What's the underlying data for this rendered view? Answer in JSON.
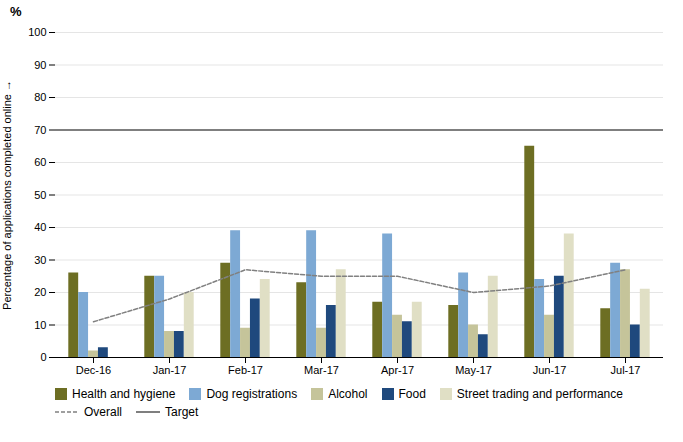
{
  "chart_data": {
    "type": "bar",
    "categories": [
      "Dec-16",
      "Jan-17",
      "Feb-17",
      "Mar-17",
      "Apr-17",
      "May-17",
      "Jun-17",
      "Jul-17"
    ],
    "series": [
      {
        "name": "Health and hygiene",
        "color": "#6d6e23",
        "values": [
          26,
          25,
          29,
          23,
          17,
          16,
          65,
          15
        ]
      },
      {
        "name": "Dog registrations",
        "color": "#7da9d4",
        "values": [
          20,
          25,
          39,
          39,
          38,
          26,
          24,
          29
        ]
      },
      {
        "name": "Alcohol",
        "color": "#c5c49a",
        "values": [
          2,
          8,
          9,
          9,
          13,
          10,
          13,
          27
        ]
      },
      {
        "name": "Food",
        "color": "#1f497d",
        "values": [
          3,
          8,
          18,
          16,
          11,
          7,
          25,
          10
        ]
      },
      {
        "name": "Street trading and performance",
        "color": "#e0dfc5",
        "values": [
          null,
          20,
          24,
          27,
          17,
          25,
          38,
          21
        ]
      },
      {
        "name": "Overall",
        "type": "line",
        "line_style": "dashed",
        "color": "#808080",
        "values": [
          11,
          18,
          27,
          25,
          25,
          20,
          22,
          27
        ]
      },
      {
        "name": "Target",
        "type": "rule",
        "line_style": "solid",
        "color": "#7f7f7f",
        "value": 70
      }
    ],
    "ylabel": "Percentage of applications completed online",
    "annotations": [
      "%"
    ],
    "ylim": [
      0,
      100
    ],
    "yticks": [
      0,
      10,
      20,
      30,
      40,
      50,
      60,
      70,
      80,
      90,
      100
    ],
    "grid": true,
    "legend": "bottom"
  }
}
